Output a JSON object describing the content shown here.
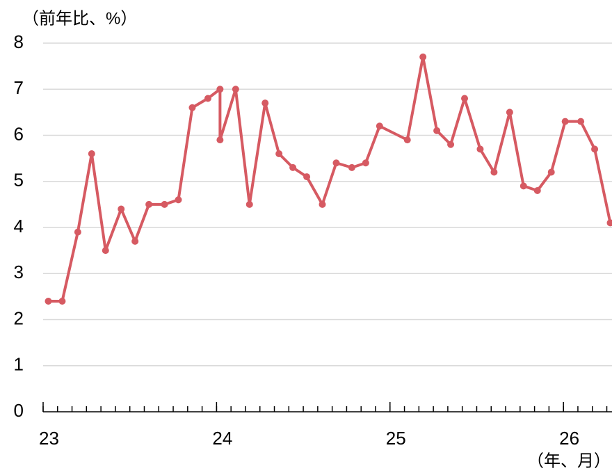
{
  "chart_data": {
    "type": "line",
    "ylabel": "（前年比、%）",
    "xlabel": "（年、月）",
    "x": [
      23.03,
      23.11,
      23.2,
      23.28,
      23.36,
      23.45,
      23.53,
      23.61,
      23.7,
      23.78,
      23.86,
      23.95,
      24.02,
      24.02,
      24.11,
      24.19,
      24.28,
      24.36,
      24.44,
      24.52,
      24.61,
      24.69,
      24.78,
      24.86,
      24.94,
      25.1,
      25.19,
      25.27,
      25.35,
      25.43,
      25.52,
      25.6,
      25.69,
      25.77,
      25.85,
      25.93,
      26.01,
      26.1,
      26.18,
      26.27
    ],
    "series": [
      {
        "color": "#d65a62",
        "values": [
          2.4,
          2.4,
          3.9,
          5.6,
          3.5,
          4.4,
          3.7,
          4.5,
          4.5,
          4.6,
          6.6,
          6.8,
          7.0,
          5.9,
          7.0,
          4.5,
          6.7,
          5.6,
          5.3,
          5.1,
          4.5,
          5.4,
          5.3,
          5.4,
          6.2,
          5.9,
          7.7,
          6.1,
          5.8,
          6.8,
          5.7,
          5.2,
          6.5,
          4.9,
          4.8,
          5.2,
          6.3,
          6.3,
          5.7,
          4.1
        ]
      }
    ],
    "xlim": [
      23,
      26.28
    ],
    "xticks": [
      23,
      24,
      25,
      26
    ],
    "ylim": [
      0,
      8
    ],
    "yticks": [
      0,
      1,
      2,
      3,
      4,
      5,
      6,
      7,
      8
    ],
    "grid": true
  }
}
